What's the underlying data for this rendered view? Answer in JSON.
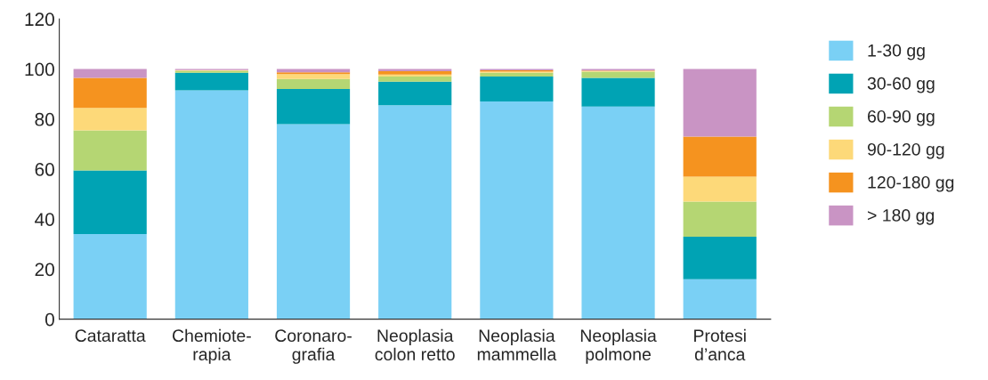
{
  "chart_data": {
    "type": "bar",
    "stacked": true,
    "categories": [
      "Cataratta",
      "Chemiote-\nrapia",
      "Coronaro-\ngrafia",
      "Neoplasia\ncolon retto",
      "Neoplasia\nmammella",
      "Neoplasia\npolmone",
      "Protesi\nd’anca"
    ],
    "series": [
      {
        "name": "1-30 gg",
        "color": "#7ad0f5",
        "values": [
          34,
          91.5,
          78,
          85.5,
          87,
          85,
          16
        ]
      },
      {
        "name": "30-60 gg",
        "color": "#00a3b4",
        "values": [
          25.5,
          7,
          14,
          9.5,
          10,
          11.5,
          17
        ]
      },
      {
        "name": "60-90 gg",
        "color": "#b5d673",
        "values": [
          16,
          0.8,
          4,
          2,
          1.5,
          2.5,
          14
        ]
      },
      {
        "name": "90-120 gg",
        "color": "#fdd979",
        "values": [
          9,
          0.2,
          2,
          0.8,
          0.5,
          0.2,
          10
        ]
      },
      {
        "name": "120-180 gg",
        "color": "#f5931f",
        "values": [
          12,
          0.1,
          0.7,
          1.3,
          0.5,
          0.2,
          16
        ]
      },
      {
        "name": "> 180 gg",
        "color": "#c994c4",
        "values": [
          3.5,
          0.4,
          1.3,
          0.9,
          0.5,
          0.6,
          27
        ]
      }
    ],
    "ylim": [
      0,
      120
    ],
    "yticks": [
      0,
      20,
      40,
      60,
      80,
      100,
      120
    ],
    "grid": false,
    "legend": "right"
  }
}
